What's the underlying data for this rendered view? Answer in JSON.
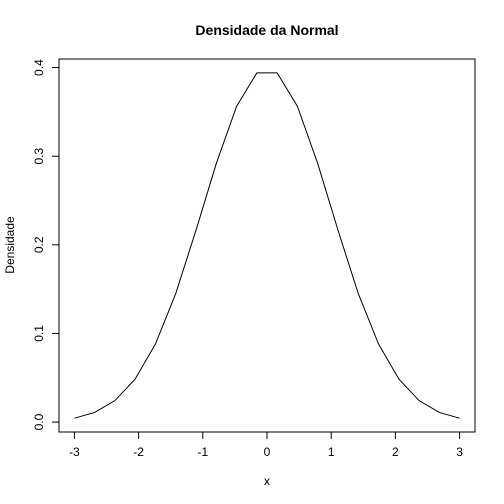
{
  "chart_data": {
    "type": "line",
    "title": "Densidade da Normal",
    "xlabel": "x",
    "ylabel": "Densidade",
    "xlim": [
      -3.24,
      3.24
    ],
    "ylim": [
      -0.0112,
      0.4097
    ],
    "x_ticks": [
      -3,
      -2,
      -1,
      0,
      1,
      2,
      3
    ],
    "x_tick_labels": [
      "-3",
      "-2",
      "-1",
      "0",
      "1",
      "2",
      "3"
    ],
    "y_ticks": [
      0.0,
      0.1,
      0.2,
      0.3,
      0.4
    ],
    "y_tick_labels": [
      "0.0",
      "0.1",
      "0.2",
      "0.3",
      "0.4"
    ],
    "grid": false,
    "series": [
      {
        "x": [
          -3.0,
          -2.684,
          -2.368,
          -2.053,
          -1.737,
          -1.421,
          -1.105,
          -0.789,
          -0.474,
          -0.158,
          0.158,
          0.474,
          0.789,
          1.105,
          1.421,
          1.737,
          2.053,
          2.368,
          2.684,
          3.0
        ],
        "y": [
          0.0044,
          0.0109,
          0.0243,
          0.0486,
          0.0882,
          0.1452,
          0.2167,
          0.292,
          0.3563,
          0.394,
          0.394,
          0.3563,
          0.292,
          0.2167,
          0.1452,
          0.0882,
          0.0486,
          0.0243,
          0.0109,
          0.0044
        ]
      }
    ]
  }
}
